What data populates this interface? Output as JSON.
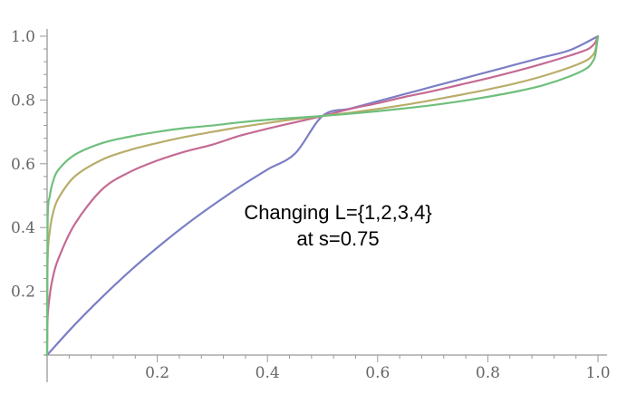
{
  "chart_data": {
    "type": "line",
    "title": "",
    "xlabel": "",
    "ylabel": "",
    "xlim": [
      0,
      1
    ],
    "ylim": [
      0,
      1
    ],
    "x_ticks": [
      0.2,
      0.4,
      0.6,
      0.8,
      1.0
    ],
    "x_tick_labels": [
      "0.2",
      "0.4",
      "0.6",
      "0.8",
      "1.0"
    ],
    "y_ticks": [
      0.2,
      0.4,
      0.6,
      0.8,
      1.0
    ],
    "y_tick_labels": [
      "0.2",
      "0.4",
      "0.6",
      "0.8",
      "1.0"
    ],
    "minor_ticks_per_major": 4,
    "grid": false,
    "legend": "none",
    "annotation": [
      "Changing L={1,2,3,4}",
      "at s=0.75"
    ],
    "series": [
      {
        "color": "#7b7fc4",
        "x": [
          0,
          0.05,
          0.1,
          0.15,
          0.2,
          0.25,
          0.3,
          0.35,
          0.4,
          0.45,
          0.5,
          0.55,
          0.6,
          0.65,
          0.7,
          0.75,
          0.8,
          0.85,
          0.9,
          0.95,
          1.0
        ],
        "y": [
          0,
          0.095,
          0.182,
          0.263,
          0.337,
          0.406,
          0.469,
          0.528,
          0.582,
          0.632,
          0.75,
          0.773,
          0.796,
          0.819,
          0.842,
          0.865,
          0.888,
          0.911,
          0.934,
          0.957,
          1.0
        ]
      },
      {
        "color": "#c46a93",
        "x": [
          0,
          0.001,
          0.005,
          0.01,
          0.02,
          0.05,
          0.1,
          0.15,
          0.2,
          0.25,
          0.3,
          0.35,
          0.4,
          0.45,
          0.5,
          0.55,
          0.6,
          0.65,
          0.7,
          0.75,
          0.8,
          0.85,
          0.9,
          0.95,
          0.98,
          0.99,
          0.995,
          1.0
        ],
        "y": [
          0,
          0.12,
          0.19,
          0.24,
          0.3,
          0.41,
          0.52,
          0.574,
          0.61,
          0.638,
          0.66,
          0.688,
          0.71,
          0.73,
          0.75,
          0.772,
          0.79,
          0.81,
          0.828,
          0.848,
          0.868,
          0.89,
          0.914,
          0.94,
          0.958,
          0.97,
          0.98,
          1.0
        ]
      },
      {
        "color": "#b9ad6a",
        "x": [
          0,
          0.001,
          0.005,
          0.01,
          0.02,
          0.05,
          0.1,
          0.15,
          0.2,
          0.25,
          0.3,
          0.35,
          0.4,
          0.45,
          0.5,
          0.55,
          0.6,
          0.65,
          0.7,
          0.75,
          0.8,
          0.85,
          0.9,
          0.95,
          0.98,
          0.99,
          0.995,
          1.0
        ],
        "y": [
          0,
          0.3,
          0.39,
          0.44,
          0.49,
          0.56,
          0.613,
          0.643,
          0.665,
          0.684,
          0.7,
          0.715,
          0.728,
          0.74,
          0.75,
          0.76,
          0.772,
          0.785,
          0.8,
          0.816,
          0.833,
          0.852,
          0.875,
          0.903,
          0.925,
          0.94,
          0.955,
          1.0
        ]
      },
      {
        "color": "#6fbf7c",
        "x": [
          0,
          0.001,
          0.005,
          0.01,
          0.02,
          0.05,
          0.1,
          0.15,
          0.2,
          0.25,
          0.3,
          0.35,
          0.4,
          0.45,
          0.5,
          0.55,
          0.6,
          0.65,
          0.7,
          0.75,
          0.8,
          0.85,
          0.9,
          0.95,
          0.98,
          0.99,
          0.995,
          1.0
        ],
        "y": [
          0,
          0.42,
          0.5,
          0.54,
          0.58,
          0.628,
          0.665,
          0.685,
          0.7,
          0.712,
          0.72,
          0.73,
          0.738,
          0.744,
          0.75,
          0.757,
          0.765,
          0.774,
          0.784,
          0.796,
          0.81,
          0.826,
          0.846,
          0.875,
          0.9,
          0.92,
          0.94,
          1.0
        ]
      }
    ]
  }
}
